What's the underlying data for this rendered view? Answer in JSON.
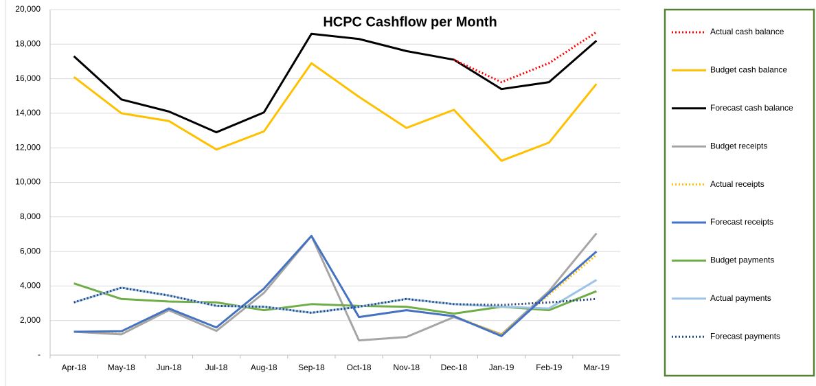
{
  "chart_data": {
    "type": "line",
    "title": "HCPC Cashflow per Month",
    "categories": [
      "Apr-18",
      "May-18",
      "Jun-18",
      "Jul-18",
      "Aug-18",
      "Sep-18",
      "Oct-18",
      "Nov-18",
      "Dec-18",
      "Jan-19",
      "Feb-19",
      "Mar-19"
    ],
    "ylim": [
      0,
      20000
    ],
    "yticks": [
      {
        "value": 0,
        "label": "-"
      },
      {
        "value": 2000,
        "label": "2,000"
      },
      {
        "value": 4000,
        "label": "4,000"
      },
      {
        "value": 6000,
        "label": "6,000"
      },
      {
        "value": 8000,
        "label": "8,000"
      },
      {
        "value": 10000,
        "label": "10,000"
      },
      {
        "value": 12000,
        "label": "12,000"
      },
      {
        "value": 14000,
        "label": "14,000"
      },
      {
        "value": 16000,
        "label": "16,000"
      },
      {
        "value": 18000,
        "label": "18,000"
      },
      {
        "value": 20000,
        "label": "20,000"
      }
    ],
    "grid": true,
    "legend": "right",
    "series": [
      {
        "name": "Actual cash balance",
        "color": "#ff0000",
        "dash": "dotted",
        "values": [
          null,
          null,
          null,
          null,
          null,
          null,
          null,
          null,
          17100,
          15800,
          16900,
          18700
        ]
      },
      {
        "name": "Budget cash balance",
        "color": "#ffc000",
        "dash": "solid",
        "values": [
          16100,
          14000,
          13550,
          11900,
          12950,
          16900,
          14950,
          13150,
          14200,
          11250,
          12300,
          15700
        ]
      },
      {
        "name": "Forecast cash balance",
        "color": "#000000",
        "dash": "solid",
        "values": [
          17300,
          14800,
          14100,
          12900,
          14050,
          18600,
          18300,
          17600,
          17100,
          15400,
          15800,
          18200
        ]
      },
      {
        "name": "Budget receipts",
        "color": "#a5a5a5",
        "dash": "solid",
        "values": [
          1350,
          1200,
          2600,
          1400,
          3600,
          6900,
          850,
          1050,
          2200,
          1200,
          3700,
          7050
        ]
      },
      {
        "name": "Actual receipts",
        "color": "#ffc000",
        "dash": "dotted",
        "values": [
          1350,
          1350,
          2700,
          1600,
          3850,
          6900,
          2200,
          2600,
          2250,
          1200,
          3500,
          5800
        ]
      },
      {
        "name": "Forecast receipts",
        "color": "#4472c4",
        "dash": "solid",
        "values": [
          1350,
          1380,
          2700,
          1600,
          3850,
          6900,
          2200,
          2600,
          2250,
          1100,
          3600,
          6000
        ]
      },
      {
        "name": "Budget payments",
        "color": "#70ad47",
        "dash": "solid",
        "values": [
          4150,
          3250,
          3100,
          3050,
          2600,
          2950,
          2850,
          2800,
          2400,
          2800,
          2600,
          3700
        ]
      },
      {
        "name": "Actual payments",
        "color": "#9dc3e6",
        "dash": "solid",
        "values": [
          3050,
          3900,
          3450,
          2850,
          2800,
          2450,
          2800,
          3250,
          2950,
          2800,
          2700,
          4350
        ]
      },
      {
        "name": "Forecast payments",
        "color": "#264478",
        "dash": "dotted",
        "values": [
          3050,
          3900,
          3450,
          2850,
          2800,
          2450,
          2800,
          3250,
          2950,
          2900,
          3050,
          3250
        ]
      }
    ]
  }
}
